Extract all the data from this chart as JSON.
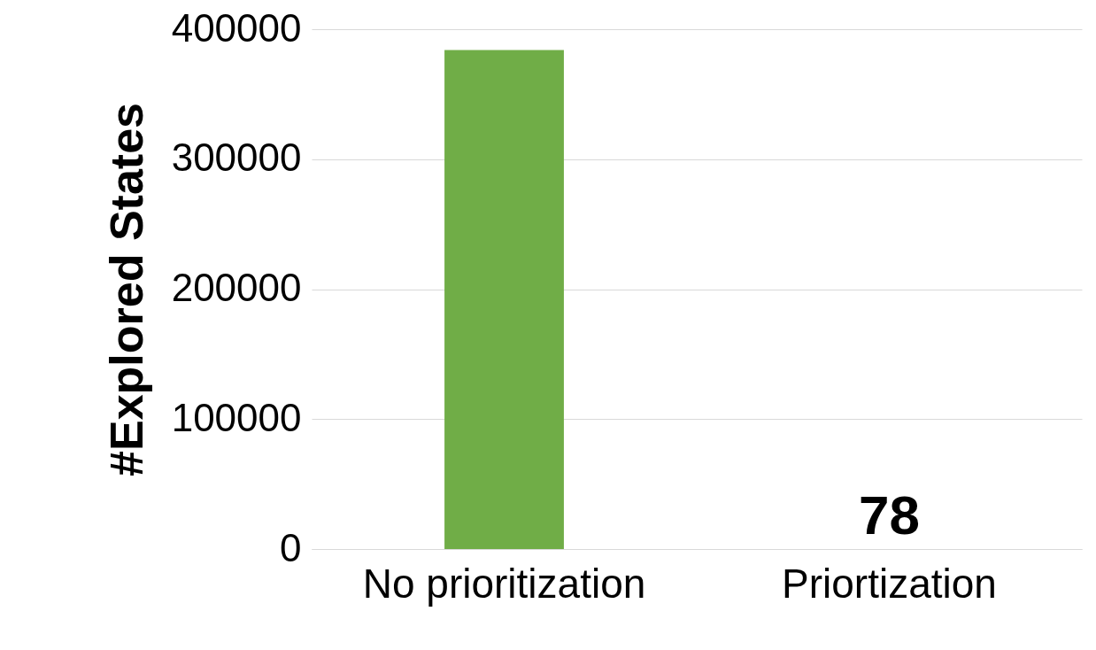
{
  "chart_data": {
    "type": "bar",
    "ylabel": "#Explored States",
    "categories": [
      "No prioritization",
      "Priortization"
    ],
    "values": [
      384000,
      78
    ],
    "value_labels": [
      null,
      "78"
    ],
    "color": "#70ad47",
    "ylim": [
      0,
      400000
    ],
    "yticks": [
      0,
      100000,
      200000,
      300000,
      400000
    ],
    "grid": "y"
  }
}
